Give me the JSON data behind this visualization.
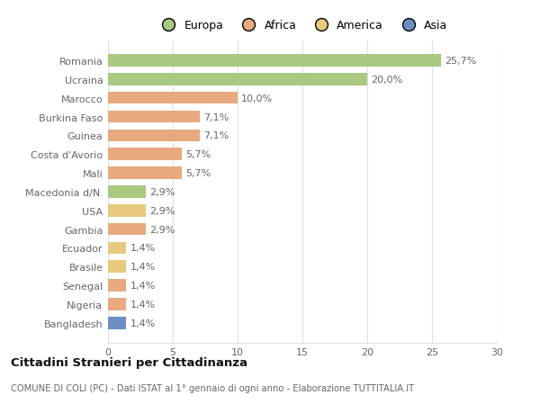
{
  "categories": [
    "Romania",
    "Ucraina",
    "Marocco",
    "Burkina Faso",
    "Guinea",
    "Costa d'Avorio",
    "Mali",
    "Macedonia d/N.",
    "USA",
    "Gambia",
    "Ecuador",
    "Brasile",
    "Senegal",
    "Nigeria",
    "Bangladesh"
  ],
  "values": [
    25.7,
    20.0,
    10.0,
    7.1,
    7.1,
    5.7,
    5.7,
    2.9,
    2.9,
    2.9,
    1.4,
    1.4,
    1.4,
    1.4,
    1.4
  ],
  "labels": [
    "25,7%",
    "20,0%",
    "10,0%",
    "7,1%",
    "7,1%",
    "5,7%",
    "5,7%",
    "2,9%",
    "2,9%",
    "2,9%",
    "1,4%",
    "1,4%",
    "1,4%",
    "1,4%",
    "1,4%"
  ],
  "bar_colors": [
    "#a8c97f",
    "#a8c97f",
    "#e8a97e",
    "#e8a97e",
    "#e8a97e",
    "#e8a97e",
    "#e8a97e",
    "#a8c97f",
    "#e8c97e",
    "#e8a97e",
    "#e8c97e",
    "#e8c97e",
    "#e8a97e",
    "#e8a97e",
    "#6b8fc2"
  ],
  "legend_labels": [
    "Europa",
    "Africa",
    "America",
    "Asia"
  ],
  "legend_colors": [
    "#a8c97f",
    "#e8a97e",
    "#e8c97e",
    "#6b8fc2"
  ],
  "title": "Cittadini Stranieri per Cittadinanza",
  "subtitle": "COMUNE DI COLI (PC) - Dati ISTAT al 1° gennaio di ogni anno - Elaborazione TUTTITALIA.IT",
  "xlim": [
    0,
    30
  ],
  "xticks": [
    0,
    5,
    10,
    15,
    20,
    25,
    30
  ],
  "bg_color": "#ffffff",
  "grid_color": "#e0e0e0",
  "label_color": "#666666",
  "title_color": "#111111",
  "bar_height": 0.65
}
